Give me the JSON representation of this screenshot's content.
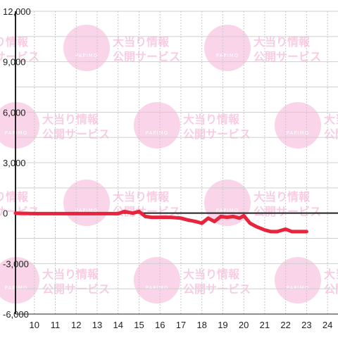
{
  "chart_data": {
    "type": "line",
    "title": "",
    "xlabel": "",
    "ylabel": "",
    "x_ticks": [
      "10",
      "11",
      "12",
      "13",
      "14",
      "15",
      "16",
      "17",
      "18",
      "19",
      "20",
      "21",
      "22",
      "23",
      "24"
    ],
    "y_ticks": [
      "12,000",
      "9,000",
      "6,000",
      "3,000",
      "0",
      "-3,000",
      "-6,000"
    ],
    "xlim": [
      9.1,
      24.5
    ],
    "ylim": [
      -6000,
      12000
    ],
    "grid": true,
    "series": [
      {
        "color": "#e8243c",
        "x": [
          9.1,
          10,
          11,
          12,
          13,
          14,
          14.3,
          14.7,
          15,
          15.3,
          15.6,
          16,
          16.5,
          17,
          17.3,
          17.7,
          18,
          18.3,
          18.6,
          18.9,
          19.2,
          19.5,
          19.8,
          20,
          20.3,
          20.6,
          21,
          21.3,
          21.6,
          22,
          22.3,
          22.6,
          23
        ],
        "y": [
          0,
          -30,
          -30,
          -30,
          -30,
          -30,
          100,
          0,
          100,
          -200,
          -250,
          -250,
          -250,
          -300,
          -400,
          -500,
          -600,
          -300,
          -500,
          -200,
          -250,
          -200,
          -300,
          -150,
          -600,
          -800,
          -1000,
          -1100,
          -1100,
          -950,
          -1100,
          -1100,
          -1100
        ]
      }
    ]
  },
  "watermark": {
    "line1": "大当り情報",
    "line2": "公開サービス",
    "brand": "PAPIMO",
    "color": "#f7b7d8"
  }
}
